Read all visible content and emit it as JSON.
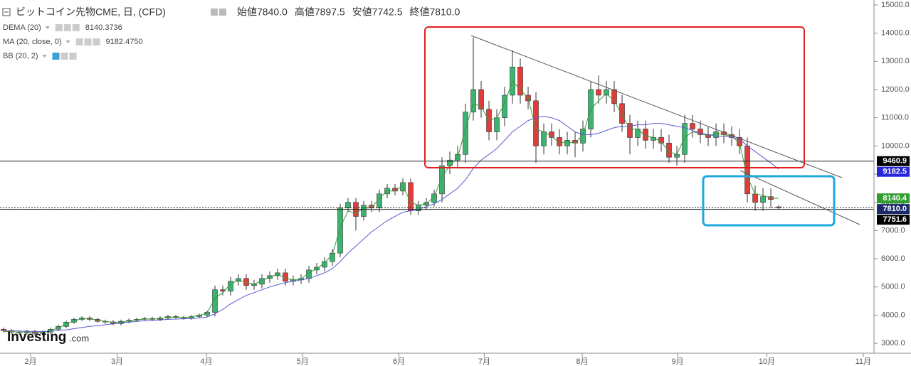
{
  "chart_data": {
    "type": "candlestick",
    "header": {
      "title": "ビットコイン先物CME, 日, (CFD)",
      "ohlc": [
        {
          "name": "始値",
          "label": "7840.0"
        },
        {
          "name": "高値",
          "label": "7897.5"
        },
        {
          "name": "安値",
          "label": "7742.5"
        },
        {
          "name": "終値",
          "label": "7810.0"
        }
      ]
    },
    "up_color": "#3cb371",
    "down_color": "#e23b3b",
    "open": [
      3500,
      3450,
      3400,
      3380,
      3420,
      3350,
      3400,
      3500,
      3600,
      3750,
      3850,
      3900,
      3850,
      3780,
      3760,
      3700,
      3780,
      3820,
      3850,
      3880,
      3850,
      3900,
      3950,
      3920,
      3900,
      3950,
      4000,
      4100,
      4900,
      4850,
      5200,
      5300,
      5050,
      5100,
      5300,
      5400,
      5500,
      5200,
      5250,
      5300,
      5600,
      5700,
      5900,
      6200,
      7800,
      8000,
      7500,
      7900,
      7800,
      8300,
      8500,
      8400,
      8700,
      7700,
      7900,
      8000,
      8300,
      9300,
      9500,
      9700,
      11200,
      12000,
      11300,
      10500,
      11000,
      11800,
      12800,
      11800,
      11600,
      10000,
      10500,
      10300,
      10000,
      10200,
      10100,
      10600,
      12000,
      11800,
      12000,
      11500,
      10800,
      10300,
      10600,
      10200,
      10300,
      10100,
      9600,
      9700,
      10800,
      10600,
      10400,
      10300,
      10500,
      10400,
      10300,
      10000,
      8300,
      8000,
      8200,
      7840
    ],
    "high": [
      3560,
      3510,
      3460,
      3480,
      3480,
      3460,
      3560,
      3660,
      3810,
      3910,
      3960,
      3960,
      3910,
      3840,
      3820,
      3840,
      3880,
      3910,
      3940,
      3940,
      3960,
      4010,
      4010,
      3980,
      4010,
      4060,
      4160,
      5050,
      5050,
      5350,
      5450,
      5450,
      5250,
      5450,
      5550,
      5650,
      5650,
      5400,
      5450,
      5750,
      5850,
      6050,
      6350,
      7950,
      8150,
      8150,
      8050,
      8050,
      8450,
      8650,
      8650,
      8850,
      8850,
      8050,
      8150,
      8450,
      9600,
      9800,
      10000,
      11500,
      13850,
      12300,
      11600,
      11300,
      12100,
      13400,
      13100,
      12100,
      11900,
      10800,
      10800,
      10600,
      10500,
      10500,
      10900,
      12300,
      12500,
      12300,
      12300,
      11800,
      11100,
      10900,
      10900,
      10600,
      10600,
      10400,
      10000,
      11100,
      11100,
      10900,
      10700,
      10800,
      10800,
      10700,
      10600,
      10300,
      8600,
      8500,
      8500,
      7897.5
    ],
    "low": [
      3390,
      3340,
      3320,
      3320,
      3290,
      3290,
      3340,
      3440,
      3540,
      3690,
      3790,
      3790,
      3720,
      3700,
      3640,
      3640,
      3720,
      3760,
      3790,
      3790,
      3790,
      3840,
      3860,
      3840,
      3840,
      3890,
      3940,
      3950,
      4700,
      4700,
      5050,
      4900,
      4900,
      4950,
      5150,
      5250,
      5050,
      5050,
      5100,
      5150,
      5450,
      5550,
      5750,
      6050,
      7650,
      7000,
      7350,
      7650,
      7650,
      8150,
      8250,
      8250,
      7550,
      7550,
      7750,
      7850,
      8000,
      9000,
      9200,
      9400,
      10900,
      11000,
      10200,
      10200,
      10700,
      11500,
      11500,
      11300,
      9400,
      9700,
      10000,
      9700,
      9700,
      9600,
      9800,
      10300,
      11500,
      11500,
      11200,
      10500,
      9700,
      10000,
      9900,
      9900,
      9800,
      9400,
      9300,
      9400,
      10300,
      10100,
      10000,
      10000,
      10100,
      10000,
      9700,
      8000,
      7700,
      7700,
      7800,
      7742.5
    ],
    "close": [
      3450,
      3400,
      3380,
      3420,
      3350,
      3400,
      3500,
      3600,
      3750,
      3850,
      3900,
      3850,
      3780,
      3760,
      3700,
      3780,
      3820,
      3850,
      3880,
      3850,
      3900,
      3950,
      3920,
      3900,
      3950,
      4000,
      4100,
      4900,
      4850,
      5200,
      5300,
      5050,
      5100,
      5300,
      5400,
      5500,
      5200,
      5250,
      5300,
      5600,
      5700,
      5900,
      6200,
      7800,
      8000,
      7500,
      7900,
      7800,
      8300,
      8500,
      8400,
      8700,
      7700,
      7900,
      8000,
      8300,
      9300,
      9500,
      9700,
      11200,
      12000,
      11300,
      10500,
      11000,
      11800,
      12800,
      11800,
      11600,
      10000,
      10500,
      10300,
      10000,
      10200,
      10100,
      10600,
      12000,
      11800,
      12000,
      11500,
      10800,
      10300,
      10600,
      10200,
      10300,
      10100,
      9600,
      9700,
      10800,
      10600,
      10400,
      10300,
      10500,
      10400,
      10300,
      10000,
      8300,
      8000,
      8200,
      8100,
      7810
    ],
    "series": [
      {
        "name": "DEMA (20)",
        "color": "#3a9a3a",
        "last_label": "8140.3736",
        "values": [
          3420,
          3410,
          3400,
          3400,
          3390,
          3400,
          3450,
          3550,
          3680,
          3800,
          3870,
          3870,
          3820,
          3780,
          3740,
          3750,
          3790,
          3830,
          3860,
          3860,
          3880,
          3930,
          3930,
          3910,
          3940,
          3990,
          4080,
          4600,
          4800,
          5100,
          5250,
          5150,
          5100,
          5220,
          5350,
          5450,
          5300,
          5250,
          5280,
          5500,
          5650,
          5850,
          6150,
          7100,
          7700,
          7600,
          7800,
          7800,
          8150,
          8400,
          8400,
          8600,
          8000,
          7900,
          7950,
          8200,
          8900,
          9300,
          9600,
          10600,
          11500,
          11400,
          10900,
          11000,
          11500,
          12300,
          12000,
          11700,
          10600,
          10500,
          10350,
          10100,
          10150,
          10100,
          10400,
          11300,
          11600,
          11850,
          11600,
          11100,
          10600,
          10600,
          10350,
          10300,
          10150,
          9800,
          9700,
          10300,
          10500,
          10450,
          10350,
          10450,
          10400,
          10350,
          10100,
          8900,
          8300,
          8250,
          8150,
          8140.3736
        ]
      },
      {
        "name": "MA (20, close, 0)",
        "color": "#5a5ad6",
        "last_label": "9182.4750",
        "values": [
          3450,
          3450,
          3440,
          3430,
          3420,
          3420,
          3430,
          3450,
          3480,
          3520,
          3560,
          3600,
          3630,
          3660,
          3690,
          3720,
          3750,
          3780,
          3800,
          3820,
          3830,
          3850,
          3860,
          3870,
          3880,
          3900,
          3930,
          4050,
          4200,
          4400,
          4550,
          4700,
          4800,
          4900,
          5000,
          5080,
          5150,
          5200,
          5250,
          5300,
          5400,
          5500,
          5650,
          5900,
          6200,
          6450,
          6700,
          6950,
          7150,
          7350,
          7500,
          7650,
          7700,
          7750,
          7850,
          7950,
          8100,
          8300,
          8500,
          8800,
          9200,
          9500,
          9700,
          9900,
          10200,
          10500,
          10700,
          10900,
          11000,
          11050,
          11000,
          10900,
          10700,
          10500,
          10400,
          10400,
          10450,
          10550,
          10650,
          10700,
          10700,
          10750,
          10750,
          10800,
          10800,
          10750,
          10700,
          10650,
          10550,
          10450,
          10400,
          10350,
          10350,
          10300,
          10250,
          10000,
          9800,
          9600,
          9400,
          9182.475
        ]
      }
    ],
    "indicator_off": "BB (20, 2)",
    "ylim": [
      2650,
      15175
    ],
    "yticks": [
      {
        "value": 3000,
        "label": "3000.0"
      },
      {
        "value": 4000,
        "label": "4000.0"
      },
      {
        "value": 5000,
        "label": "5000.0"
      },
      {
        "value": 6000,
        "label": "6000.0"
      },
      {
        "value": 7000,
        "label": "7000.0"
      },
      {
        "value": 8000,
        "label": "8000.0"
      },
      {
        "value": 9000,
        "label": "9000.0"
      },
      {
        "value": 10000,
        "label": "10000.0"
      },
      {
        "value": 11000,
        "label": "11000.0"
      },
      {
        "value": 12000,
        "label": "12000.0"
      },
      {
        "value": 13000,
        "label": "13000.0"
      },
      {
        "value": 14000,
        "label": "14000.0"
      },
      {
        "value": 15000,
        "label": "15000.0"
      }
    ],
    "xlim": [
      -0.4545,
      111.36
    ],
    "xticks": [
      {
        "value": 3.45,
        "label": "2月"
      },
      {
        "value": 14.5,
        "label": "3月"
      },
      {
        "value": 25.9,
        "label": "4月"
      },
      {
        "value": 38.2,
        "label": "5月"
      },
      {
        "value": 50.5,
        "label": "6月"
      },
      {
        "value": 61.4,
        "label": "7月"
      },
      {
        "value": 73.9,
        "label": "8月"
      },
      {
        "value": 86.1,
        "label": "9月"
      },
      {
        "value": 97.5,
        "label": "10月"
      },
      {
        "value": 109.8,
        "label": "11月"
      }
    ],
    "price_labels": [
      {
        "value": 9460.9,
        "label": "9460.9",
        "color": "#000000",
        "line": "solid"
      },
      {
        "value": 9182.5,
        "label": "9182.5",
        "color": "#2727d9",
        "line": "none"
      },
      {
        "value": 8140.4,
        "label": "8140.4",
        "color": "#2f9e2f",
        "line": "none"
      },
      {
        "value": 7810.0,
        "label": "7810.0",
        "color": "#1a2a6a",
        "line": "dotted"
      },
      {
        "value": 7751.6,
        "label": "7751.6",
        "color": "#000000",
        "line": "solid"
      }
    ],
    "logo": {
      "brand": "Investing",
      "suffix": ".com"
    }
  }
}
